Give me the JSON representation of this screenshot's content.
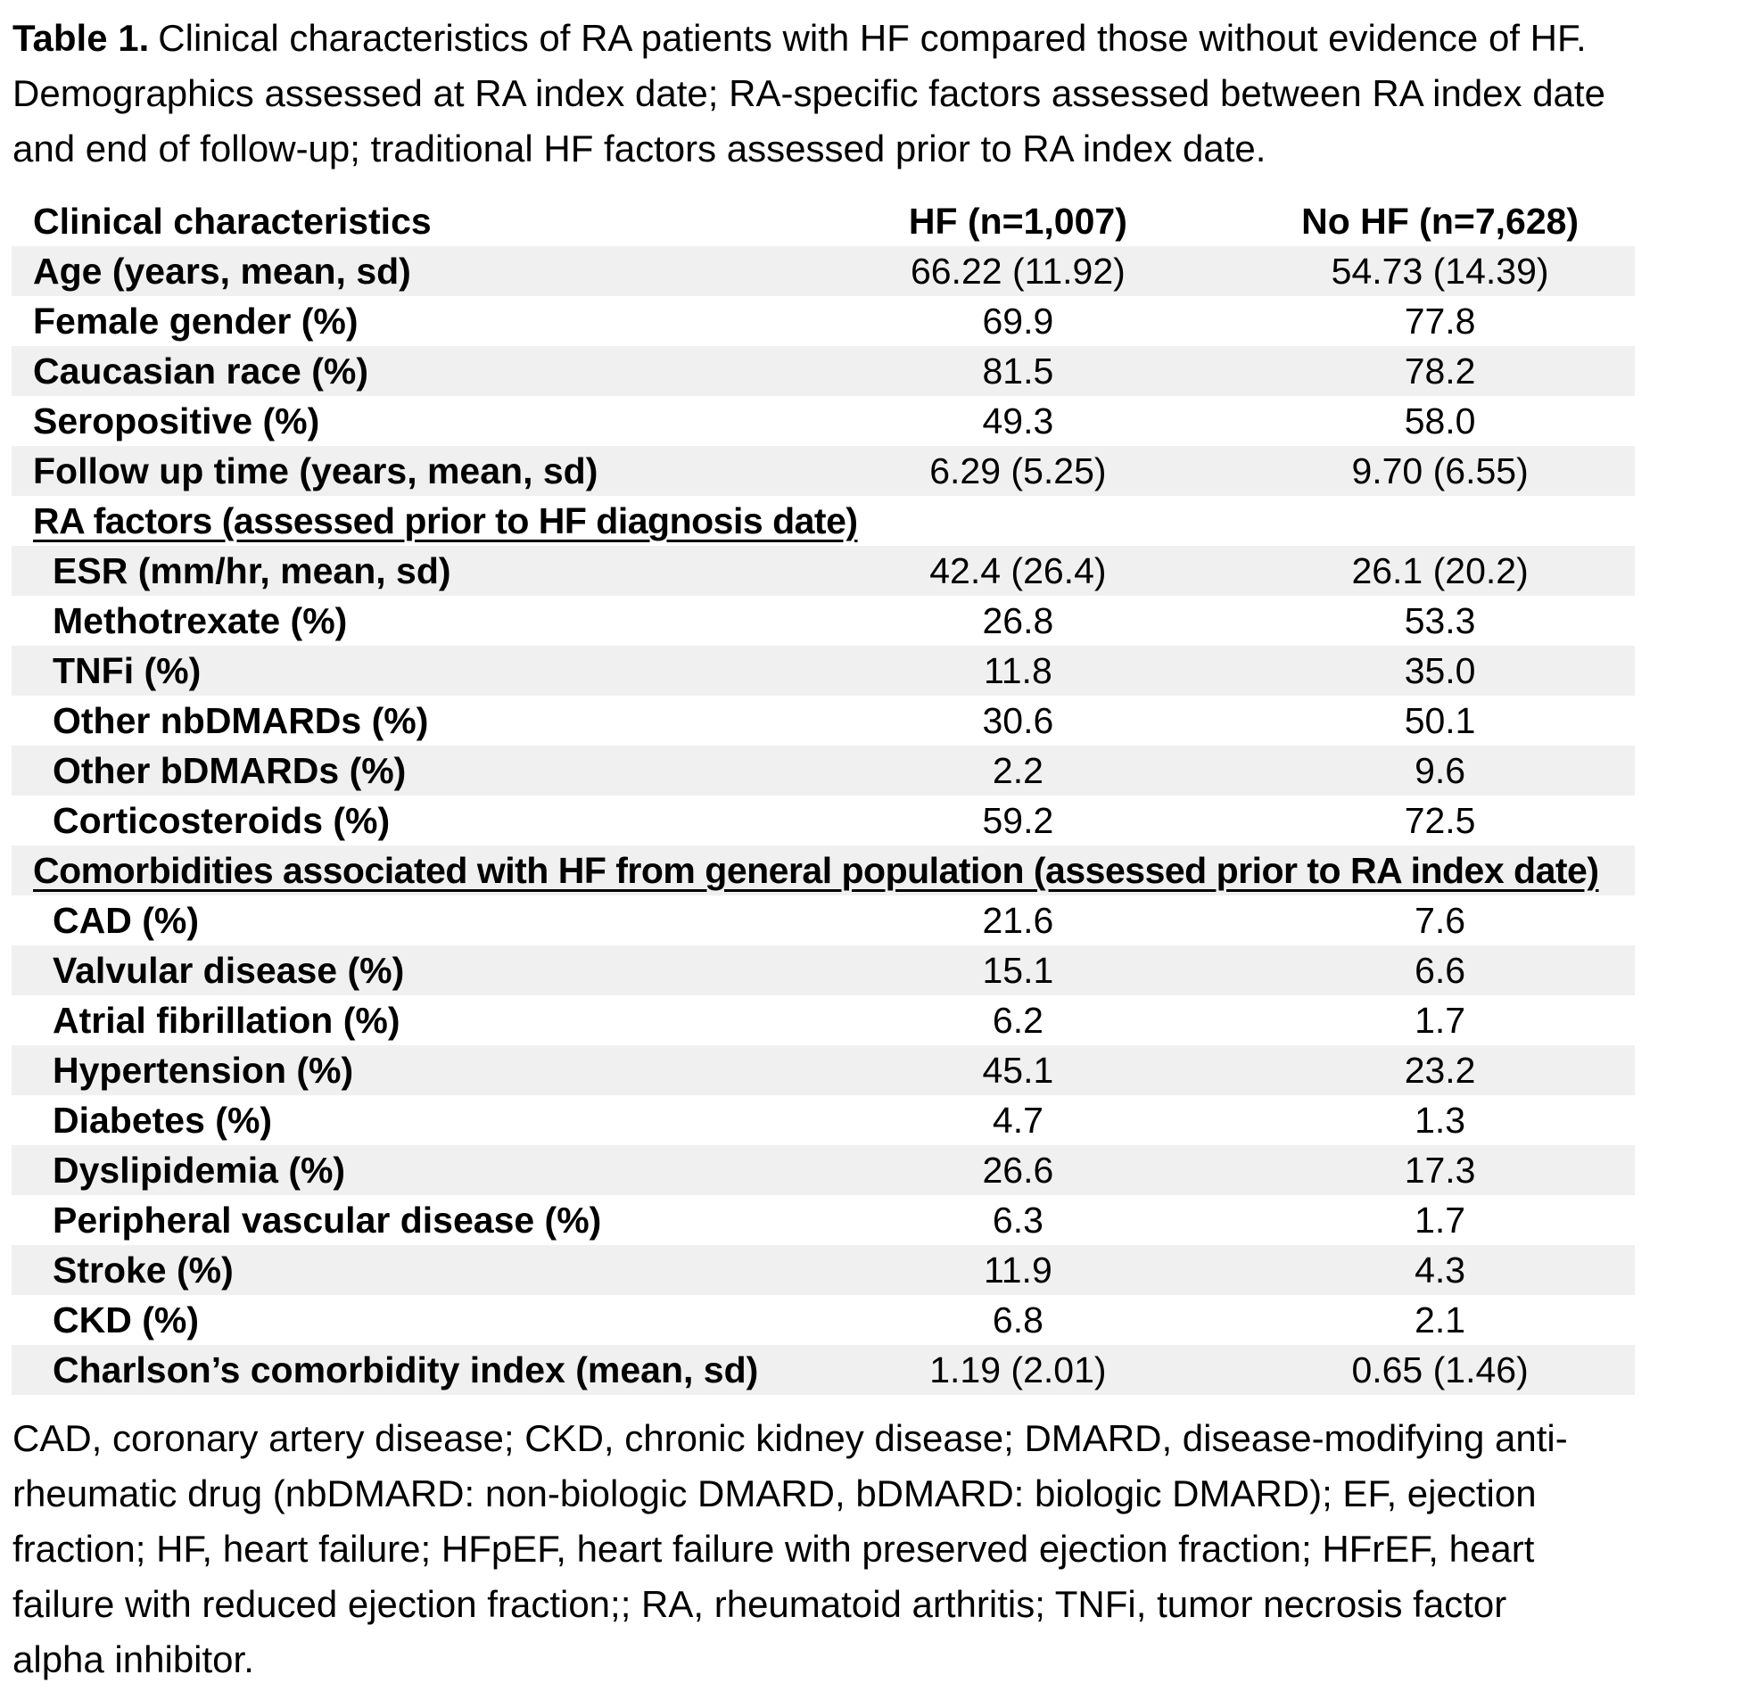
{
  "title": {
    "prefix": "Table 1.",
    "line1": "Clinical characteristics of RA patients with HF compared those without evidence of HF.",
    "line2": "Demographics assessed at RA index date; RA-specific factors assessed between RA index date",
    "line3": "and end of follow-up; traditional HF factors assessed prior to RA index date."
  },
  "table": {
    "columns": [
      "Clinical characteristics",
      "HF (n=1,007)",
      "No HF (n=7,628)"
    ],
    "rows": [
      {
        "label": "Age (years, mean, sd)",
        "hf": "66.22 (11.92)",
        "nohf": "54.73 (14.39)"
      },
      {
        "label": "Female gender (%)",
        "hf": "69.9",
        "nohf": "77.8"
      },
      {
        "label": "Caucasian race (%)",
        "hf": "81.5",
        "nohf": "78.2"
      },
      {
        "label": "Seropositive (%)",
        "hf": "49.3",
        "nohf": "58.0"
      },
      {
        "label": "Follow up time (years, mean, sd)",
        "hf": "6.29 (5.25)",
        "nohf": "9.70 (6.55)"
      },
      {
        "label": "RA factors (assessed prior to HF diagnosis date)",
        "hf": "",
        "nohf": ""
      },
      {
        "label": "ESR (mm/hr, mean, sd)",
        "hf": "42.4 (26.4)",
        "nohf": "26.1 (20.2)"
      },
      {
        "label": "Methotrexate (%)",
        "hf": "26.8",
        "nohf": "53.3"
      },
      {
        "label": "TNFi (%)",
        "hf": "11.8",
        "nohf": "35.0"
      },
      {
        "label": "Other nbDMARDs (%)",
        "hf": "30.6",
        "nohf": "50.1"
      },
      {
        "label": "Other bDMARDs (%)",
        "hf": "2.2",
        "nohf": "9.6"
      },
      {
        "label": "Corticosteroids (%)",
        "hf": "59.2",
        "nohf": "72.5"
      },
      {
        "label": "Comorbidities associated with HF from general population (assessed prior to RA index date)",
        "hf": "",
        "nohf": ""
      },
      {
        "label": "CAD (%)",
        "hf": "21.6",
        "nohf": "7.6"
      },
      {
        "label": "Valvular disease (%)",
        "hf": "15.1",
        "nohf": "6.6"
      },
      {
        "label": "Atrial fibrillation (%)",
        "hf": "6.2",
        "nohf": "1.7"
      },
      {
        "label": "Hypertension (%)",
        "hf": "45.1",
        "nohf": "23.2"
      },
      {
        "label": "Diabetes (%)",
        "hf": "4.7",
        "nohf": "1.3"
      },
      {
        "label": "Dyslipidemia (%)",
        "hf": "26.6",
        "nohf": "17.3"
      },
      {
        "label": "Peripheral vascular disease (%)",
        "hf": "6.3",
        "nohf": "1.7"
      },
      {
        "label": "Stroke (%)",
        "hf": "11.9",
        "nohf": "4.3"
      },
      {
        "label": "CKD (%)",
        "hf": "6.8",
        "nohf": "2.1"
      },
      {
        "label": "Charlson’s comorbidity index (mean, sd)",
        "hf": "1.19 (2.01)",
        "nohf": "0.65 (1.46)"
      }
    ]
  },
  "footnote": {
    "lines": [
      "CAD, coronary artery disease; CKD, chronic kidney disease; DMARD, disease-modifying anti-",
      "rheumatic drug (nbDMARD: non-biologic DMARD, bDMARD: biologic DMARD); EF, ejection",
      "fraction; HF, heart failure; HFpEF, heart failure with preserved ejection fraction; HFrEF, heart",
      "failure with reduced ejection fraction;; RA, rheumatoid arthritis; TNFi, tumor necrosis factor",
      "alpha inhibitor."
    ]
  }
}
